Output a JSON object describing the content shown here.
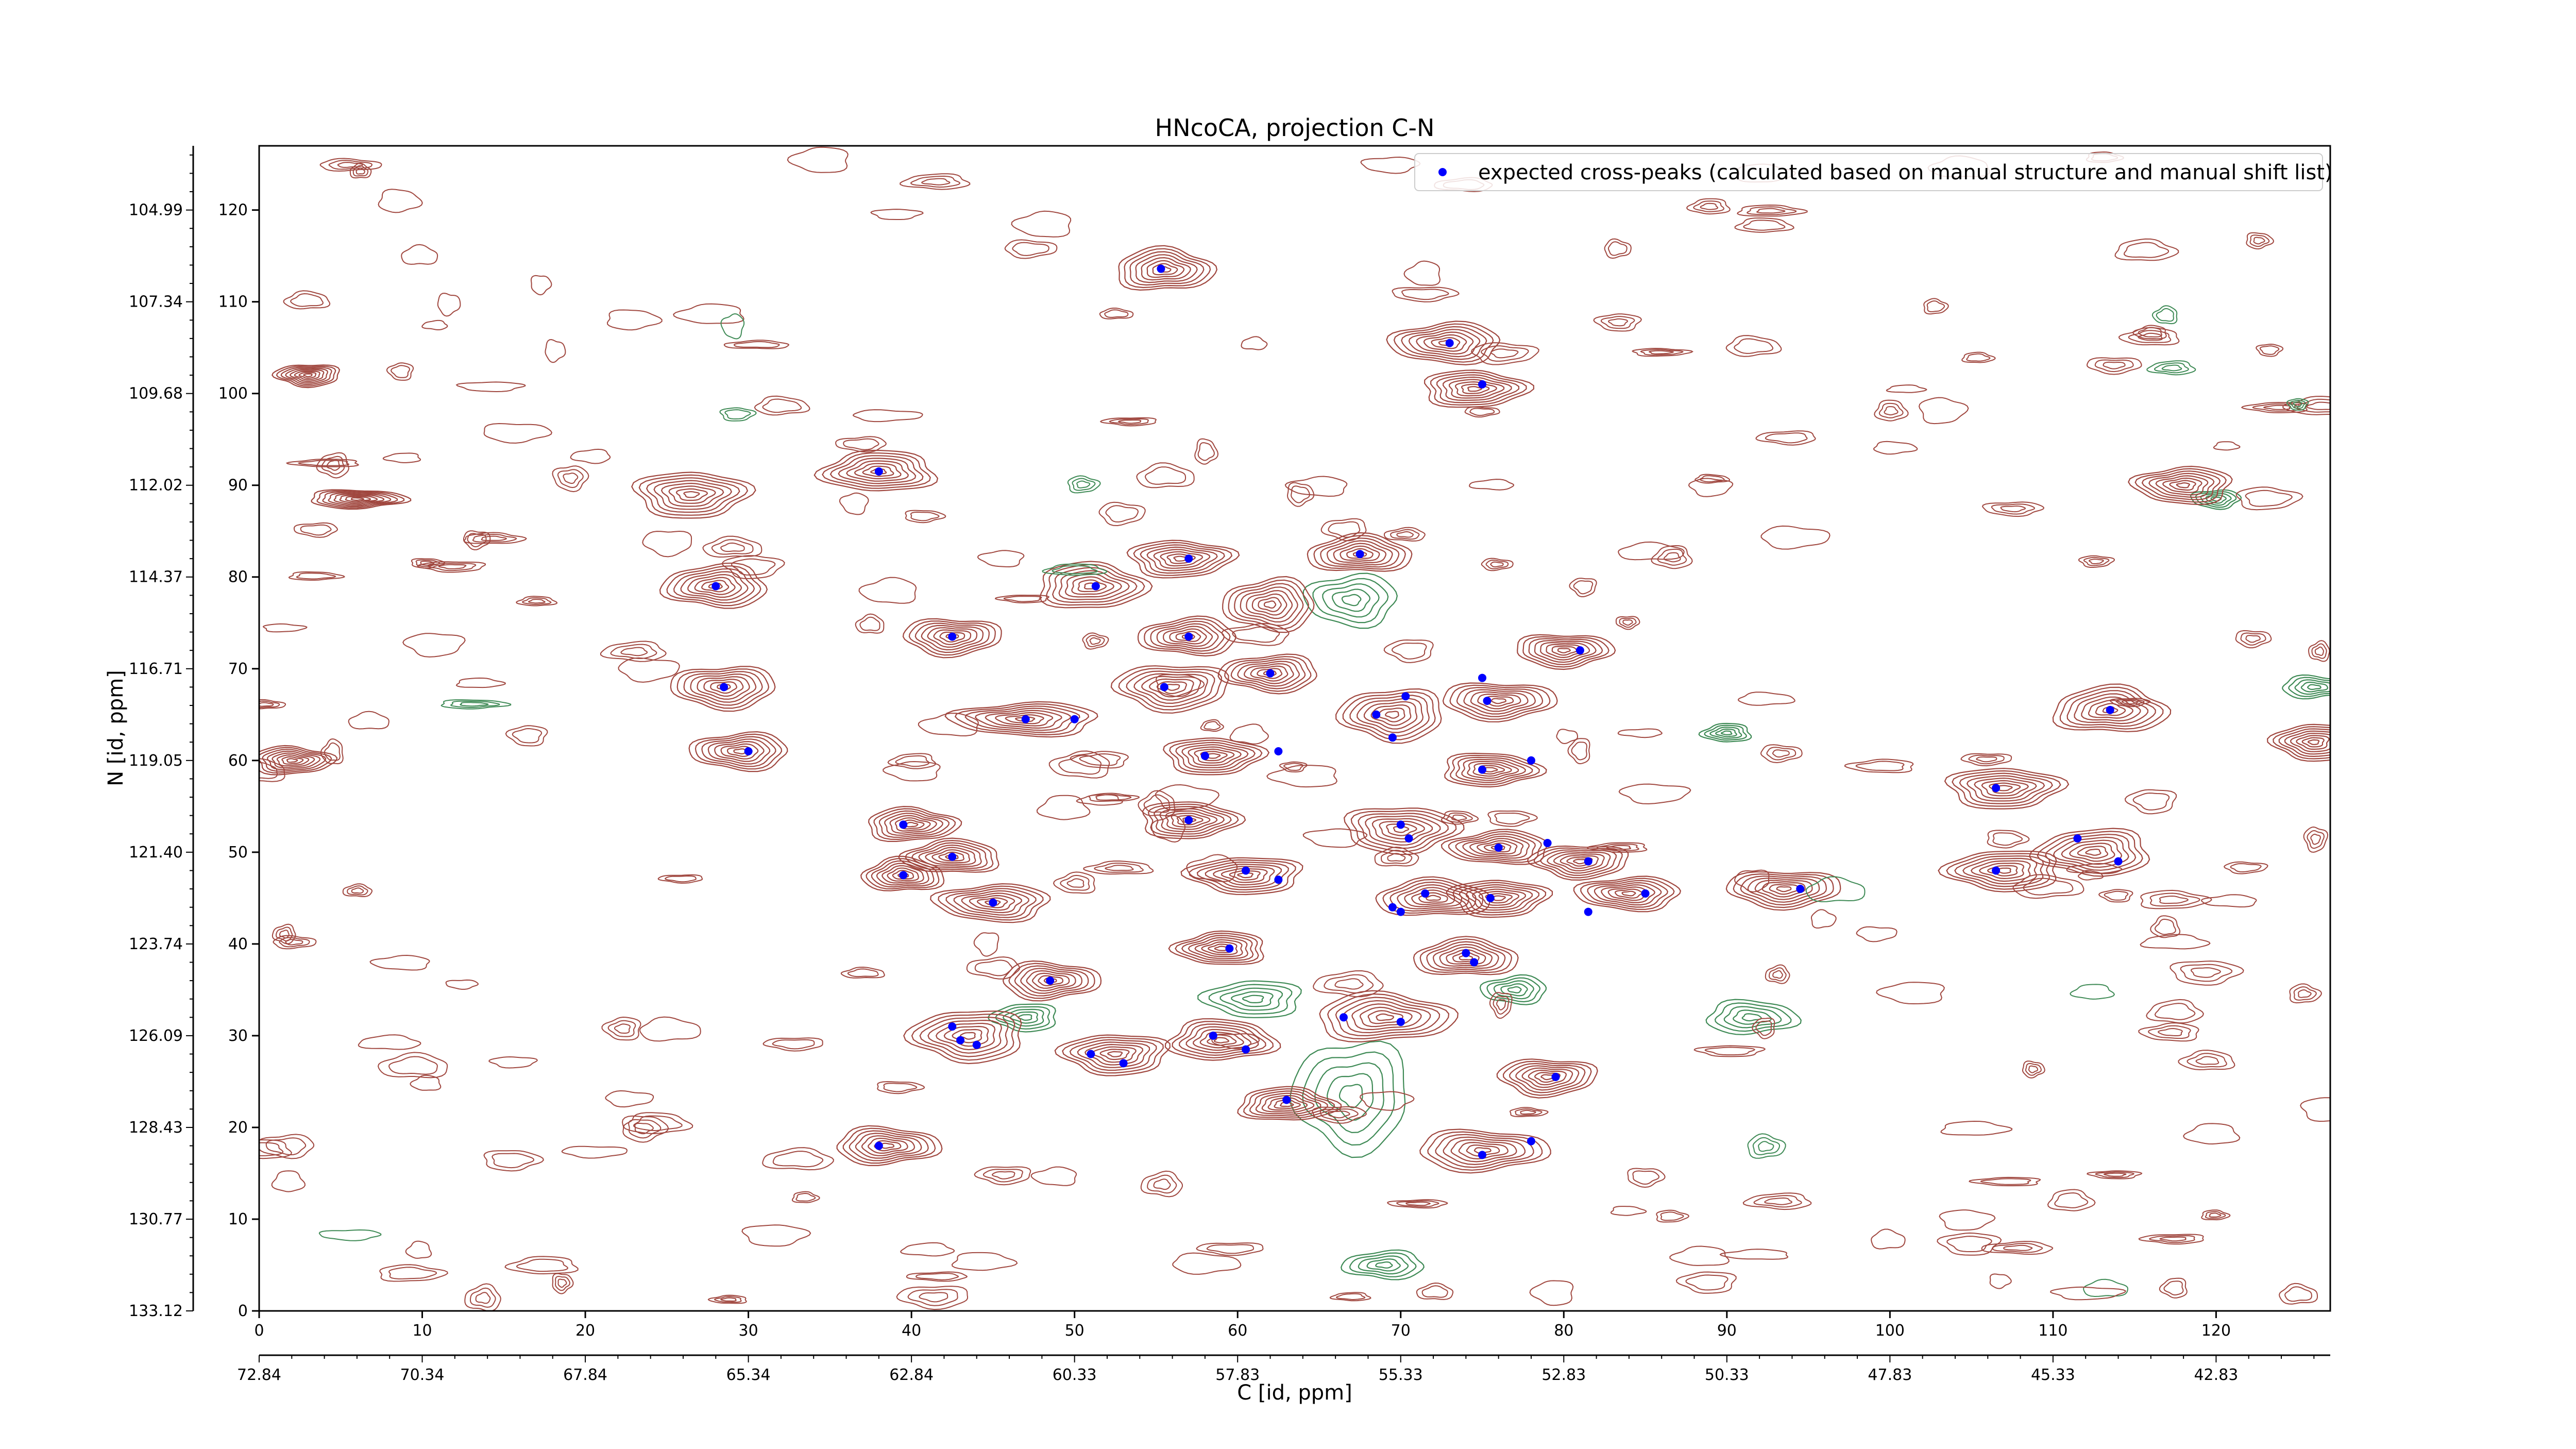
{
  "chart_data": {
    "type": "scatter",
    "title": "HNcoCA, projection C-N",
    "xlabel": "C [id, ppm]",
    "ylabel": "N [id, ppm]",
    "xlim": [
      0,
      127
    ],
    "ylim": [
      0,
      127
    ],
    "x_ticks_index": [
      "0",
      "10",
      "20",
      "30",
      "40",
      "50",
      "60",
      "70",
      "80",
      "90",
      "100",
      "110",
      "120"
    ],
    "x_ticks_ppm": [
      "72.84",
      "70.34",
      "67.84",
      "65.34",
      "62.84",
      "60.33",
      "57.83",
      "55.33",
      "52.83",
      "50.33",
      "47.83",
      "45.33",
      "42.83"
    ],
    "y_ticks_index": [
      "0",
      "10",
      "20",
      "30",
      "40",
      "50",
      "60",
      "70",
      "80",
      "90",
      "100",
      "110",
      "120"
    ],
    "y_ticks_ppm": [
      "133.12",
      "130.77",
      "128.43",
      "126.09",
      "123.74",
      "121.40",
      "119.05",
      "116.71",
      "114.37",
      "112.02",
      "109.68",
      "107.34",
      "104.99"
    ],
    "legend": {
      "position": "upper right",
      "label": "expected cross-peaks (calculated based on manual structure and manual shift list)"
    },
    "colors": {
      "positive_contour": "#a0473f",
      "negative_contour": "#3e8a55",
      "marker": "#0000ff"
    },
    "contour_peaks": [
      {
        "x": 55.5,
        "y": 113.5,
        "a": 3,
        "b": 2.3
      },
      {
        "x": 72.8,
        "y": 105.5,
        "a": 3.4,
        "b": 2.2
      },
      {
        "x": 74.5,
        "y": 100.5,
        "a": 3.2,
        "b": 2.0
      },
      {
        "x": 38,
        "y": 91.5,
        "a": 3.5,
        "b": 2.2
      },
      {
        "x": 26.5,
        "y": 89,
        "a": 3.5,
        "b": 2.5
      },
      {
        "x": 28,
        "y": 79,
        "a": 3.2,
        "b": 2.3
      },
      {
        "x": 51,
        "y": 79,
        "a": 3.3,
        "b": 2.5
      },
      {
        "x": 56.5,
        "y": 82,
        "a": 3.2,
        "b": 2.0
      },
      {
        "x": 67.5,
        "y": 82.5,
        "a": 3.2,
        "b": 2.0
      },
      {
        "x": 62,
        "y": 77,
        "a": 2.8,
        "b": 2.8
      },
      {
        "x": 42.5,
        "y": 73.5,
        "a": 3.0,
        "b": 2.0
      },
      {
        "x": 57,
        "y": 73.5,
        "a": 3.0,
        "b": 2.0
      },
      {
        "x": 56,
        "y": 68,
        "a": 3.5,
        "b": 2.5
      },
      {
        "x": 62,
        "y": 69.5,
        "a": 3.0,
        "b": 2.0
      },
      {
        "x": 28.5,
        "y": 68,
        "a": 3.2,
        "b": 2.3
      },
      {
        "x": 47,
        "y": 64.5,
        "a": 4.5,
        "b": 1.8
      },
      {
        "x": 29.5,
        "y": 61,
        "a": 3.0,
        "b": 2.0
      },
      {
        "x": 58.5,
        "y": 60.5,
        "a": 3.0,
        "b": 2.0
      },
      {
        "x": 76,
        "y": 66.5,
        "a": 3.5,
        "b": 2.0
      },
      {
        "x": 80,
        "y": 72,
        "a": 3.0,
        "b": 1.8
      },
      {
        "x": 75.5,
        "y": 59,
        "a": 3.0,
        "b": 1.8
      },
      {
        "x": 69.5,
        "y": 65,
        "a": 3.2,
        "b": 2.8
      },
      {
        "x": 57,
        "y": 53.5,
        "a": 3.0,
        "b": 2.0
      },
      {
        "x": 70,
        "y": 52.5,
        "a": 3.5,
        "b": 2.5
      },
      {
        "x": 76,
        "y": 50.5,
        "a": 3.2,
        "b": 1.8
      },
      {
        "x": 81,
        "y": 49,
        "a": 3.0,
        "b": 1.8
      },
      {
        "x": 60.5,
        "y": 47.5,
        "a": 3.5,
        "b": 2.0
      },
      {
        "x": 72,
        "y": 45,
        "a": 3.5,
        "b": 2.0
      },
      {
        "x": 76,
        "y": 45,
        "a": 3.0,
        "b": 2.0
      },
      {
        "x": 84,
        "y": 45.5,
        "a": 3.2,
        "b": 1.8
      },
      {
        "x": 93.5,
        "y": 46,
        "a": 3.5,
        "b": 2.0
      },
      {
        "x": 40,
        "y": 53,
        "a": 2.8,
        "b": 1.8
      },
      {
        "x": 42.5,
        "y": 49.5,
        "a": 3.0,
        "b": 1.8
      },
      {
        "x": 39.5,
        "y": 47.5,
        "a": 2.5,
        "b": 1.8
      },
      {
        "x": 45,
        "y": 44.5,
        "a": 3.5,
        "b": 2.0
      },
      {
        "x": 59,
        "y": 39.5,
        "a": 2.8,
        "b": 1.8
      },
      {
        "x": 48.5,
        "y": 36,
        "a": 3.0,
        "b": 2.0
      },
      {
        "x": 74,
        "y": 38.5,
        "a": 3.2,
        "b": 2.0
      },
      {
        "x": 69,
        "y": 32,
        "a": 4.2,
        "b": 2.6
      },
      {
        "x": 43.5,
        "y": 30,
        "a": 3.5,
        "b": 2.8
      },
      {
        "x": 52.5,
        "y": 28,
        "a": 3.3,
        "b": 2.2
      },
      {
        "x": 59,
        "y": 29.5,
        "a": 3.3,
        "b": 2.2
      },
      {
        "x": 63,
        "y": 22.5,
        "a": 3.0,
        "b": 1.8
      },
      {
        "x": 79,
        "y": 25.5,
        "a": 3.0,
        "b": 2.0
      },
      {
        "x": 75,
        "y": 17.5,
        "a": 4.0,
        "b": 2.2
      },
      {
        "x": 38.5,
        "y": 18,
        "a": 3.2,
        "b": 2.0
      },
      {
        "x": 107,
        "y": 57,
        "a": 3.5,
        "b": 2.2
      },
      {
        "x": 113.5,
        "y": 65.5,
        "a": 3.5,
        "b": 2.5
      },
      {
        "x": 107,
        "y": 48,
        "a": 3.5,
        "b": 2.2
      },
      {
        "x": 112.5,
        "y": 50,
        "a": 3.5,
        "b": 2.5
      },
      {
        "x": 3,
        "y": 102,
        "a": 2.0,
        "b": 1.2
      },
      {
        "x": 6,
        "y": 88.5,
        "a": 3.0,
        "b": 1.0
      },
      {
        "x": 2,
        "y": 60,
        "a": 2.5,
        "b": 1.5
      },
      {
        "x": 126,
        "y": 62,
        "a": 2.5,
        "b": 2.0
      },
      {
        "x": 118,
        "y": 90,
        "a": 3.0,
        "b": 2.0
      }
    ],
    "negative_peaks": [
      {
        "x": 67,
        "y": 77.5,
        "a": 2.8,
        "b": 2.8
      },
      {
        "x": 67,
        "y": 23.5,
        "a": 3.5,
        "b": 6.0
      },
      {
        "x": 61,
        "y": 34,
        "a": 3.0,
        "b": 2.0
      },
      {
        "x": 91.5,
        "y": 32,
        "a": 2.8,
        "b": 1.8
      },
      {
        "x": 47,
        "y": 32,
        "a": 2.0,
        "b": 1.5
      },
      {
        "x": 77,
        "y": 35,
        "a": 2.0,
        "b": 1.5
      },
      {
        "x": 69,
        "y": 5,
        "a": 2.5,
        "b": 1.5
      },
      {
        "x": 120,
        "y": 88.5,
        "a": 1.5,
        "b": 1.0
      },
      {
        "x": 126,
        "y": 68,
        "a": 2.0,
        "b": 1.2
      },
      {
        "x": 90,
        "y": 63,
        "a": 1.5,
        "b": 1.0
      }
    ],
    "series": [
      {
        "name": "expected cross-peaks (calculated based on manual structure and manual shift list)",
        "points": [
          [
            55.3,
            113.6
          ],
          [
            73.0,
            105.5
          ],
          [
            75.0,
            101.0
          ],
          [
            38.0,
            91.5
          ],
          [
            28.0,
            79.0
          ],
          [
            51.3,
            79.0
          ],
          [
            57.0,
            82.0
          ],
          [
            67.5,
            82.5
          ],
          [
            42.5,
            73.5
          ],
          [
            57.0,
            73.5
          ],
          [
            28.5,
            68.0
          ],
          [
            55.5,
            68.0
          ],
          [
            62.0,
            69.5
          ],
          [
            81.0,
            72.0
          ],
          [
            47.0,
            64.5
          ],
          [
            50.0,
            64.5
          ],
          [
            75.0,
            69.0
          ],
          [
            75.3,
            66.5
          ],
          [
            68.5,
            65.0
          ],
          [
            70.3,
            67.0
          ],
          [
            69.5,
            62.5
          ],
          [
            30.0,
            61.0
          ],
          [
            58.0,
            60.5
          ],
          [
            62.5,
            61.0
          ],
          [
            75.0,
            59.0
          ],
          [
            78.0,
            60.0
          ],
          [
            57.0,
            53.5
          ],
          [
            70.0,
            53.0
          ],
          [
            70.5,
            51.5
          ],
          [
            76.0,
            50.5
          ],
          [
            79.0,
            51.0
          ],
          [
            81.5,
            49.0
          ],
          [
            39.5,
            53.0
          ],
          [
            42.5,
            49.5
          ],
          [
            39.5,
            47.5
          ],
          [
            60.5,
            48.0
          ],
          [
            62.5,
            47.0
          ],
          [
            71.5,
            45.5
          ],
          [
            69.5,
            44.0
          ],
          [
            70.0,
            43.5
          ],
          [
            75.5,
            45.0
          ],
          [
            81.5,
            43.5
          ],
          [
            85.0,
            45.5
          ],
          [
            94.5,
            46.0
          ],
          [
            45.0,
            44.5
          ],
          [
            59.5,
            39.5
          ],
          [
            48.5,
            36.0
          ],
          [
            74.0,
            39.0
          ],
          [
            74.5,
            38.0
          ],
          [
            42.5,
            31.0
          ],
          [
            43.0,
            29.5
          ],
          [
            44.0,
            29.0
          ],
          [
            66.5,
            32.0
          ],
          [
            70.0,
            31.5
          ],
          [
            51.0,
            28.0
          ],
          [
            53.0,
            27.0
          ],
          [
            58.5,
            30.0
          ],
          [
            60.5,
            28.5
          ],
          [
            63.0,
            23.0
          ],
          [
            79.5,
            25.5
          ],
          [
            75.0,
            17.0
          ],
          [
            78.0,
            18.5
          ],
          [
            38.0,
            18.0
          ],
          [
            106.5,
            57.0
          ],
          [
            113.5,
            65.5
          ],
          [
            106.5,
            48.0
          ],
          [
            111.5,
            51.5
          ],
          [
            114.0,
            49.0
          ]
        ]
      }
    ]
  }
}
